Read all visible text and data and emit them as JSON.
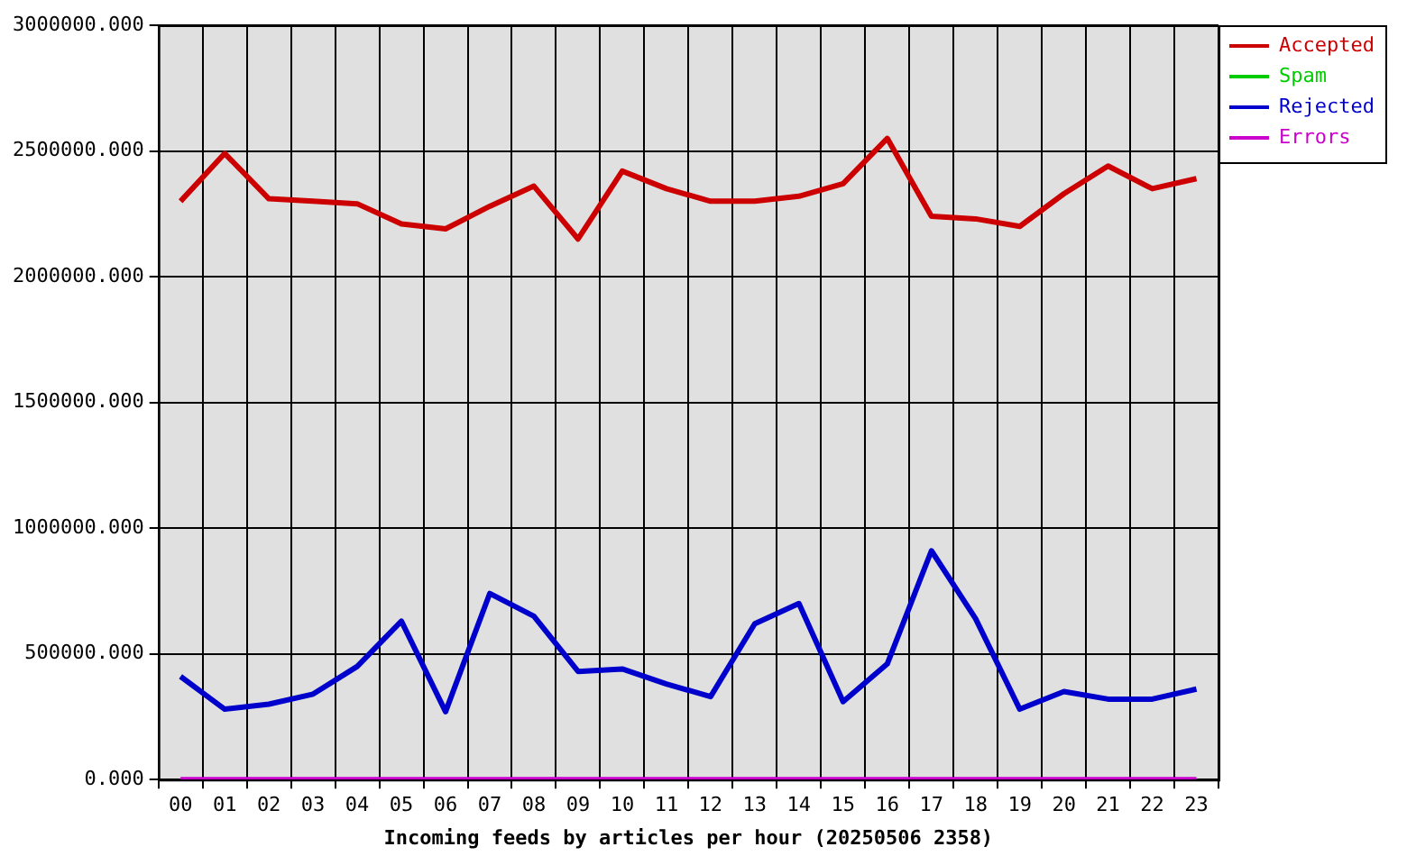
{
  "chart_data": {
    "type": "line",
    "xlabel": "Incoming feeds by articles per hour (20250506 2358)",
    "categories": [
      "00",
      "01",
      "02",
      "03",
      "04",
      "05",
      "06",
      "07",
      "08",
      "09",
      "10",
      "11",
      "12",
      "13",
      "14",
      "15",
      "16",
      "17",
      "18",
      "19",
      "20",
      "21",
      "22",
      "23"
    ],
    "series": [
      {
        "name": "Accepted",
        "color": "#cc0000",
        "values": [
          2300000,
          2490000,
          2310000,
          2300000,
          2290000,
          2210000,
          2190000,
          2280000,
          2360000,
          2150000,
          2420000,
          2350000,
          2300000,
          2300000,
          2320000,
          2370000,
          2550000,
          2240000,
          2230000,
          2200000,
          2330000,
          2440000,
          2350000,
          2390000
        ]
      },
      {
        "name": "Spam",
        "color": "#00cc00",
        "values": [
          null,
          null,
          null,
          null,
          null,
          null,
          null,
          null,
          null,
          null,
          null,
          null,
          null,
          null,
          null,
          null,
          null,
          null,
          null,
          null,
          null,
          null,
          null,
          null
        ]
      },
      {
        "name": "Rejected",
        "color": "#0000cc",
        "values": [
          410000,
          280000,
          300000,
          340000,
          450000,
          630000,
          270000,
          740000,
          650000,
          430000,
          440000,
          380000,
          330000,
          620000,
          700000,
          310000,
          460000,
          910000,
          640000,
          280000,
          350000,
          320000,
          320000,
          360000
        ]
      },
      {
        "name": "Errors",
        "color": "#cc00cc",
        "values": [
          0,
          0,
          0,
          0,
          0,
          0,
          0,
          0,
          0,
          0,
          0,
          0,
          0,
          0,
          0,
          0,
          0,
          0,
          0,
          0,
          0,
          0,
          0,
          0
        ]
      }
    ],
    "ylim": [
      0,
      3000000
    ],
    "yticks": [
      {
        "value": 0,
        "label": "0.000"
      },
      {
        "value": 500000,
        "label": "500000.000"
      },
      {
        "value": 1000000,
        "label": "1000000.000"
      },
      {
        "value": 1500000,
        "label": "1500000.000"
      },
      {
        "value": 2000000,
        "label": "2000000.000"
      },
      {
        "value": 2500000,
        "label": "2500000.000"
      },
      {
        "value": 3000000,
        "label": "3000000.000"
      }
    ],
    "grid": true,
    "legend": "top right",
    "marker": "none",
    "line_style": "solid"
  }
}
